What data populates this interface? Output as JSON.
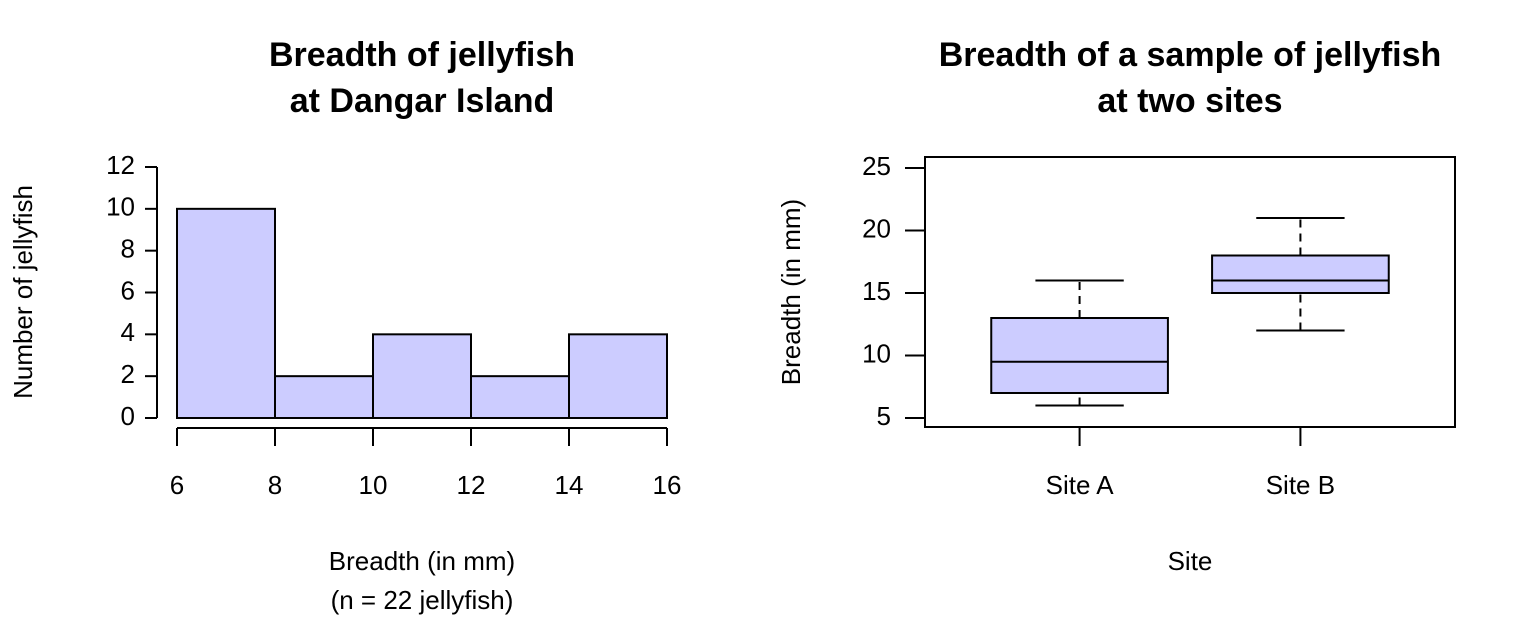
{
  "chart_data": [
    {
      "type": "histogram",
      "title": [
        "Breadth of jellyfish",
        "at Dangar Island"
      ],
      "xlabel": [
        "Breadth (in mm)",
        "(n = 22 jellyfish)"
      ],
      "ylabel": "Number of jellyfish",
      "bins": [
        6,
        8,
        10,
        12,
        14,
        16
      ],
      "values": [
        10,
        2,
        4,
        2,
        4
      ],
      "color": "#ccccff",
      "xlim": [
        6,
        16
      ],
      "xticks": [
        6,
        8,
        10,
        12,
        14,
        16
      ],
      "ylim": [
        0,
        12
      ],
      "yticks": [
        0,
        2,
        4,
        6,
        8,
        10,
        12
      ]
    },
    {
      "type": "boxplot",
      "title": [
        "Breadth of a sample of jellyfish",
        "at two sites"
      ],
      "xlabel": [
        "Site"
      ],
      "ylabel": "Breadth (in mm)",
      "categories": [
        "Site A",
        "Site B"
      ],
      "min": [
        6,
        12
      ],
      "q1": [
        7,
        15
      ],
      "median": [
        9.5,
        16
      ],
      "q3": [
        13,
        18
      ],
      "max": [
        16,
        21
      ],
      "color": "#ccccff",
      "ylim": [
        4.28,
        25.88
      ],
      "yticks": [
        5,
        10,
        15,
        20,
        25
      ]
    }
  ]
}
